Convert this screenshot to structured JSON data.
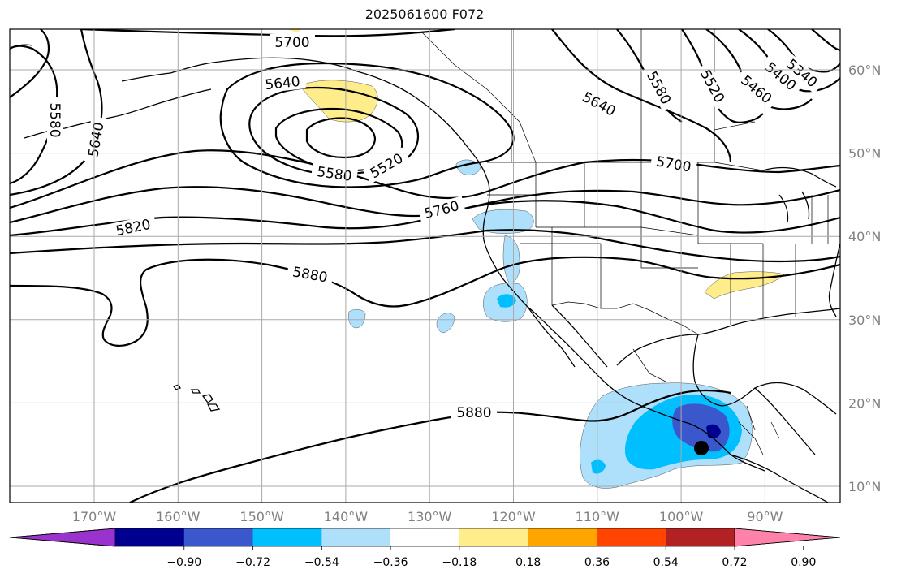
{
  "title": "2025061600 F072",
  "map": {
    "lon_labels": [
      "170°W",
      "160°W",
      "150°W",
      "140°W",
      "130°W",
      "120°W",
      "110°W",
      "100°W",
      "90°W"
    ],
    "lat_labels": [
      "60°N",
      "50°N",
      "40°N",
      "30°N",
      "20°N",
      "10°N"
    ],
    "contour_labels": [
      "5700",
      "5640",
      "5580",
      "5520",
      "5580",
      "5640",
      "5820",
      "5760",
      "5880",
      "5880",
      "5700",
      "5640",
      "5580",
      "5520",
      "5460",
      "5400",
      "5340"
    ],
    "colors": {
      "contour": "#000000",
      "grid": "#a9a9a9",
      "tick_text": "#808080",
      "storm_center": "#000000"
    },
    "storm_marker": "filled-circle"
  },
  "colorbar": {
    "colors": [
      "#9a32cd",
      "#000090",
      "#3a57cc",
      "#00bfff",
      "#aee0fb",
      "#ffffff",
      "#ffec8b",
      "#ffa500",
      "#ff4500",
      "#b22222",
      "#ff82ab"
    ],
    "ticks": [
      "−0.90",
      "−0.72",
      "−0.54",
      "−0.36",
      "−0.18",
      "0.18",
      "0.36",
      "0.54",
      "0.72",
      "0.90"
    ],
    "extend": "both"
  }
}
